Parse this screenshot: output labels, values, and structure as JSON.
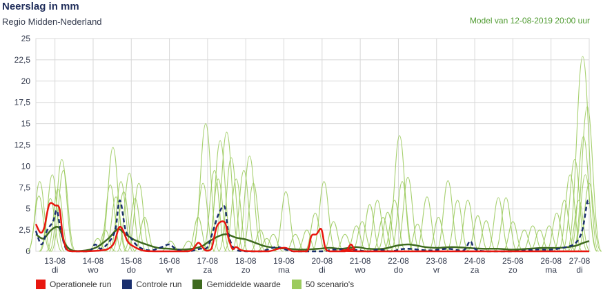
{
  "header": {
    "title": "Neerslag in mm",
    "subtitle": "Regio Midden-Nederland",
    "model": "Model van 12-08-2019 20:00 uur"
  },
  "colors": {
    "operational": "#e8170f",
    "control": "#1a2f6e",
    "mean": "#3e6a1f",
    "scenarios": "#9ccb5e",
    "grid": "#d8d8d8",
    "axis_text": "#333a4d"
  },
  "legend": [
    {
      "label": "Operationele run",
      "color": "#e8170f"
    },
    {
      "label": "Controle run",
      "color": "#1a2f6e"
    },
    {
      "label": "Gemiddelde waarde",
      "color": "#3e6a1f"
    },
    {
      "label": "50 scenario's",
      "color": "#9ccb5e"
    }
  ],
  "chart_data": {
    "type": "line",
    "ylim": [
      0,
      25
    ],
    "xlim": [
      12.5,
      27.0
    ],
    "yticks": [
      "0",
      "2,5",
      "5",
      "7,5",
      "10",
      "12,5",
      "15",
      "17,5",
      "20",
      "22,5",
      "25"
    ],
    "xticks": [
      {
        "x": 13,
        "date": "13-08",
        "day": "di"
      },
      {
        "x": 14,
        "date": "14-08",
        "day": "wo"
      },
      {
        "x": 15,
        "date": "15-08",
        "day": "do"
      },
      {
        "x": 16,
        "date": "16-08",
        "day": "vr"
      },
      {
        "x": 17,
        "date": "17-08",
        "day": "za"
      },
      {
        "x": 18,
        "date": "18-08",
        "day": "zo"
      },
      {
        "x": 19,
        "date": "19-08",
        "day": "ma"
      },
      {
        "x": 20,
        "date": "20-08",
        "day": "di"
      },
      {
        "x": 21,
        "date": "21-08",
        "day": "wo"
      },
      {
        "x": 22,
        "date": "22-08",
        "day": "do"
      },
      {
        "x": 23,
        "date": "23-08",
        "day": "vr"
      },
      {
        "x": 24,
        "date": "24-08",
        "day": "za"
      },
      {
        "x": 25,
        "date": "25-08",
        "day": "zo"
      },
      {
        "x": 26,
        "date": "26-08",
        "day": "ma"
      },
      {
        "x": 27,
        "date": "27-08",
        "day": "di"
      }
    ],
    "grid": true,
    "legend_position": "bottom-left",
    "series": [
      {
        "name": "Operationele run",
        "points": [
          [
            12.5,
            3.2
          ],
          [
            12.62,
            2.2
          ],
          [
            12.72,
            2.8
          ],
          [
            12.85,
            5.5
          ],
          [
            13.0,
            5.4
          ],
          [
            13.12,
            5.0
          ],
          [
            13.2,
            2.0
          ],
          [
            13.3,
            0.3
          ],
          [
            13.45,
            0
          ],
          [
            13.8,
            0
          ],
          [
            14.2,
            0.1
          ],
          [
            14.4,
            0.3
          ],
          [
            14.55,
            1.0
          ],
          [
            14.68,
            2.8
          ],
          [
            14.78,
            2.5
          ],
          [
            14.9,
            1.2
          ],
          [
            15.05,
            0.6
          ],
          [
            15.3,
            0.1
          ],
          [
            15.6,
            0
          ],
          [
            16.4,
            0
          ],
          [
            16.6,
            0.2
          ],
          [
            16.75,
            1.0
          ],
          [
            16.85,
            0.6
          ],
          [
            16.95,
            0.1
          ],
          [
            17.1,
            0.3
          ],
          [
            17.25,
            3.0
          ],
          [
            17.45,
            3.4
          ],
          [
            17.55,
            1.5
          ],
          [
            17.65,
            0.3
          ],
          [
            17.75,
            0.5
          ],
          [
            17.9,
            0.1
          ],
          [
            18.2,
            0
          ],
          [
            18.6,
            0
          ],
          [
            18.85,
            0.3
          ],
          [
            19.05,
            0.4
          ],
          [
            19.25,
            0
          ],
          [
            19.6,
            0
          ],
          [
            19.72,
            1.8
          ],
          [
            19.85,
            2.0
          ],
          [
            19.98,
            2.6
          ],
          [
            20.08,
            0.5
          ],
          [
            20.2,
            0
          ],
          [
            20.6,
            0
          ],
          [
            20.75,
            0.8
          ],
          [
            20.85,
            0.3
          ],
          [
            21.0,
            0
          ],
          [
            27.0,
            0
          ]
        ]
      },
      {
        "name": "Controle run",
        "points": [
          [
            12.5,
            2.4
          ],
          [
            12.65,
            0.8
          ],
          [
            12.8,
            2.5
          ],
          [
            12.95,
            3.5
          ],
          [
            13.05,
            4.8
          ],
          [
            13.15,
            2.5
          ],
          [
            13.3,
            0.2
          ],
          [
            13.5,
            0
          ],
          [
            13.9,
            0
          ],
          [
            14.05,
            0.8
          ],
          [
            14.2,
            0.3
          ],
          [
            14.4,
            1.0
          ],
          [
            14.58,
            2.5
          ],
          [
            14.7,
            6.0
          ],
          [
            14.85,
            2.5
          ],
          [
            15.0,
            1.5
          ],
          [
            15.2,
            0.5
          ],
          [
            15.5,
            0.1
          ],
          [
            15.8,
            0.5
          ],
          [
            16.0,
            0.8
          ],
          [
            16.2,
            0.2
          ],
          [
            16.5,
            0
          ],
          [
            16.8,
            0.3
          ],
          [
            17.0,
            0.5
          ],
          [
            17.15,
            2.5
          ],
          [
            17.3,
            4.5
          ],
          [
            17.45,
            5.2
          ],
          [
            17.55,
            2.0
          ],
          [
            17.7,
            0.3
          ],
          [
            18.0,
            0
          ],
          [
            18.4,
            0
          ],
          [
            18.8,
            0.5
          ],
          [
            19.05,
            0.2
          ],
          [
            19.3,
            0
          ],
          [
            20.0,
            0
          ],
          [
            20.3,
            0.2
          ],
          [
            20.8,
            0.2
          ],
          [
            21.2,
            0
          ],
          [
            21.5,
            0.2
          ],
          [
            21.8,
            0
          ],
          [
            22.2,
            0.3
          ],
          [
            22.8,
            0.1
          ],
          [
            23.3,
            0.3
          ],
          [
            23.7,
            0.1
          ],
          [
            23.88,
            1.2
          ],
          [
            24.0,
            0.3
          ],
          [
            24.3,
            0
          ],
          [
            25.0,
            0
          ],
          [
            25.6,
            0.2
          ],
          [
            26.0,
            0.2
          ],
          [
            26.4,
            0.5
          ],
          [
            26.65,
            1.0
          ],
          [
            26.82,
            2.5
          ],
          [
            26.95,
            5.8
          ],
          [
            27.0,
            5.6
          ]
        ]
      },
      {
        "name": "Gemiddelde waarde",
        "points": [
          [
            12.5,
            2.0
          ],
          [
            12.7,
            1.5
          ],
          [
            12.9,
            2.5
          ],
          [
            13.1,
            2.8
          ],
          [
            13.25,
            1.0
          ],
          [
            13.45,
            0.1
          ],
          [
            13.8,
            0.1
          ],
          [
            14.1,
            0.5
          ],
          [
            14.4,
            1.5
          ],
          [
            14.65,
            2.6
          ],
          [
            14.85,
            2.0
          ],
          [
            15.1,
            1.3
          ],
          [
            15.4,
            0.8
          ],
          [
            15.7,
            0.4
          ],
          [
            16.0,
            0.3
          ],
          [
            16.3,
            0.2
          ],
          [
            16.6,
            0.3
          ],
          [
            16.85,
            0.6
          ],
          [
            17.05,
            1.2
          ],
          [
            17.3,
            1.8
          ],
          [
            17.5,
            2.0
          ],
          [
            17.75,
            1.6
          ],
          [
            18.0,
            1.4
          ],
          [
            18.25,
            1.0
          ],
          [
            18.5,
            0.6
          ],
          [
            18.8,
            0.4
          ],
          [
            19.1,
            0.3
          ],
          [
            19.5,
            0.2
          ],
          [
            19.9,
            0.3
          ],
          [
            20.2,
            0.4
          ],
          [
            20.5,
            0.3
          ],
          [
            20.9,
            0.5
          ],
          [
            21.2,
            0.3
          ],
          [
            21.6,
            0.3
          ],
          [
            22.0,
            0.7
          ],
          [
            22.3,
            0.8
          ],
          [
            22.7,
            0.5
          ],
          [
            23.0,
            0.4
          ],
          [
            23.4,
            0.5
          ],
          [
            23.8,
            0.4
          ],
          [
            24.2,
            0.3
          ],
          [
            24.6,
            0.3
          ],
          [
            25.0,
            0.2
          ],
          [
            25.4,
            0.3
          ],
          [
            25.8,
            0.4
          ],
          [
            26.2,
            0.4
          ],
          [
            26.6,
            0.6
          ],
          [
            26.85,
            1.0
          ],
          [
            27.0,
            1.2
          ]
        ]
      }
    ],
    "scenario_peaks": [
      [
        12.58,
        6.5
      ],
      [
        12.6,
        8.2
      ],
      [
        12.88,
        6.2
      ],
      [
        12.93,
        9.0
      ],
      [
        13.08,
        7.3
      ],
      [
        13.18,
        10.8
      ],
      [
        13.22,
        9.5
      ],
      [
        14.12,
        1.5
      ],
      [
        14.32,
        2.5
      ],
      [
        14.52,
        12.2
      ],
      [
        14.45,
        7.8
      ],
      [
        14.6,
        6.4
      ],
      [
        14.73,
        8.2
      ],
      [
        14.8,
        7.0
      ],
      [
        14.95,
        9.2
      ],
      [
        15.1,
        6.2
      ],
      [
        15.2,
        8.0
      ],
      [
        15.35,
        4.0
      ],
      [
        16.03,
        1.2
      ],
      [
        16.5,
        1.2
      ],
      [
        16.75,
        4.0
      ],
      [
        16.95,
        15.0
      ],
      [
        16.88,
        8.0
      ],
      [
        17.18,
        9.5
      ],
      [
        17.33,
        13.0
      ],
      [
        17.28,
        8.5
      ],
      [
        17.5,
        14.0
      ],
      [
        17.62,
        11.0
      ],
      [
        17.75,
        8.5
      ],
      [
        17.95,
        9.5
      ],
      [
        18.1,
        11.2
      ],
      [
        18.2,
        8.0
      ],
      [
        18.38,
        2.5
      ],
      [
        18.55,
        1.5
      ],
      [
        18.72,
        2.0
      ],
      [
        19.05,
        7.0
      ],
      [
        19.3,
        2.0
      ],
      [
        19.6,
        2.5
      ],
      [
        19.82,
        4.5
      ],
      [
        20.05,
        8.2
      ],
      [
        20.3,
        3.5
      ],
      [
        20.6,
        2.0
      ],
      [
        20.9,
        3.0
      ],
      [
        21.05,
        3.5
      ],
      [
        21.25,
        5.5
      ],
      [
        21.45,
        6.0
      ],
      [
        21.6,
        4.0
      ],
      [
        21.72,
        4.6
      ],
      [
        21.9,
        6.0
      ],
      [
        22.03,
        13.6
      ],
      [
        22.1,
        8.2
      ],
      [
        22.25,
        8.7
      ],
      [
        22.5,
        3.2
      ],
      [
        22.75,
        6.4
      ],
      [
        23.05,
        4.0
      ],
      [
        23.3,
        8.3
      ],
      [
        23.55,
        6.0
      ],
      [
        23.82,
        6.0
      ],
      [
        24.08,
        4.2
      ],
      [
        24.3,
        3.6
      ],
      [
        24.62,
        6.3
      ],
      [
        24.82,
        6.3
      ],
      [
        25.0,
        3.5
      ],
      [
        25.3,
        2.5
      ],
      [
        25.52,
        3.0
      ],
      [
        25.7,
        2.5
      ],
      [
        25.95,
        3.0
      ],
      [
        26.15,
        4.5
      ],
      [
        26.35,
        6.0
      ],
      [
        26.5,
        9.0
      ],
      [
        26.62,
        10.8
      ],
      [
        26.73,
        6.0
      ],
      [
        26.83,
        22.9
      ],
      [
        26.85,
        13.5
      ],
      [
        26.95,
        17.0
      ],
      [
        26.9,
        9.0
      ],
      [
        27.0,
        8.0
      ]
    ]
  }
}
